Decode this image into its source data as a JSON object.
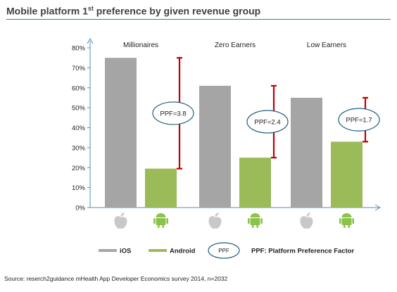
{
  "title_main": "Mobile platform 1",
  "title_sup": "st",
  "title_rest": " preference by given revenue group",
  "chart_data": {
    "type": "bar",
    "categories": [
      "Millionaires",
      "Zero Earners",
      "Low Earners"
    ],
    "series": [
      {
        "name": "iOS",
        "values": [
          75,
          61,
          55
        ]
      },
      {
        "name": "Android",
        "values": [
          19.5,
          25,
          33
        ]
      }
    ],
    "ppf_labels": [
      "PPF=3.8",
      "PPF=2.4",
      "PPF=1.7"
    ],
    "ylim": [
      0,
      80
    ],
    "yticks": [
      "0%",
      "10%",
      "20%",
      "30%",
      "40%",
      "50%",
      "60%",
      "70%",
      "80%"
    ],
    "xlabel": "",
    "ylabel": "",
    "legend": {
      "placement": "bottom",
      "items": [
        "iOS",
        "Android"
      ],
      "ppf_symbol": "PPF",
      "ppf_text": "PPF: Platform Preference Factor"
    },
    "colors": {
      "ios": "#a5a5a5",
      "android": "#9bbb59",
      "range": "#c00000",
      "ellipse": "#1f5f7a",
      "axis": "#4a90c4"
    }
  },
  "icons": {
    "ios": "apple-logo-icon",
    "android": "android-robot-icon"
  },
  "source": "Source: reserch2guidance mHealth App Developer Economics survey 2014, n=2032"
}
